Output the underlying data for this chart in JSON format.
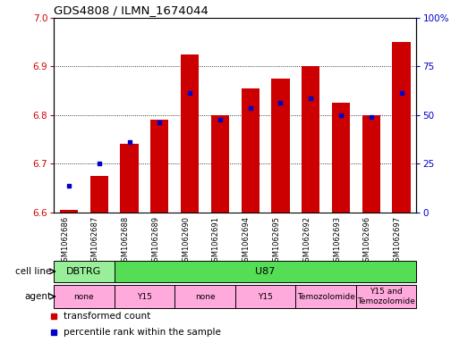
{
  "title": "GDS4808 / ILMN_1674044",
  "samples": [
    "GSM1062686",
    "GSM1062687",
    "GSM1062688",
    "GSM1062689",
    "GSM1062690",
    "GSM1062691",
    "GSM1062694",
    "GSM1062695",
    "GSM1062692",
    "GSM1062693",
    "GSM1062696",
    "GSM1062697"
  ],
  "red_values": [
    6.605,
    6.675,
    6.74,
    6.79,
    6.925,
    6.8,
    6.855,
    6.875,
    6.9,
    6.825,
    6.8,
    6.95
  ],
  "blue_values": [
    6.655,
    6.7,
    6.745,
    6.785,
    6.845,
    6.79,
    6.815,
    6.825,
    6.835,
    6.8,
    6.795,
    6.845
  ],
  "ylim_left": [
    6.6,
    7.0
  ],
  "ylim_right": [
    0,
    100
  ],
  "yticks_left": [
    6.6,
    6.7,
    6.8,
    6.9,
    7.0
  ],
  "yticks_right": [
    0,
    25,
    50,
    75,
    100
  ],
  "ytick_labels_right": [
    "0",
    "25",
    "50",
    "75",
    "100%"
  ],
  "bar_bottom": 6.6,
  "bar_color": "#cc0000",
  "blue_color": "#0000cc",
  "cell_line_groups": [
    {
      "label": "DBTRG",
      "start": 0,
      "end": 2,
      "color": "#99ee99"
    },
    {
      "label": "U87",
      "start": 2,
      "end": 12,
      "color": "#55dd55"
    }
  ],
  "agent_groups": [
    {
      "label": "none",
      "start": 0,
      "end": 2,
      "color": "#ffaadd"
    },
    {
      "label": "Y15",
      "start": 2,
      "end": 4,
      "color": "#ffaadd"
    },
    {
      "label": "none",
      "start": 4,
      "end": 6,
      "color": "#ffaadd"
    },
    {
      "label": "Y15",
      "start": 6,
      "end": 8,
      "color": "#ffaadd"
    },
    {
      "label": "Temozolomide",
      "start": 8,
      "end": 10,
      "color": "#ffaadd"
    },
    {
      "label": "Y15 and\nTemozolomide",
      "start": 10,
      "end": 12,
      "color": "#ffaadd"
    }
  ],
  "bg_color": "#ffffff",
  "tick_color_left": "#cc0000",
  "tick_color_right": "#0000cc",
  "bar_width": 0.6
}
